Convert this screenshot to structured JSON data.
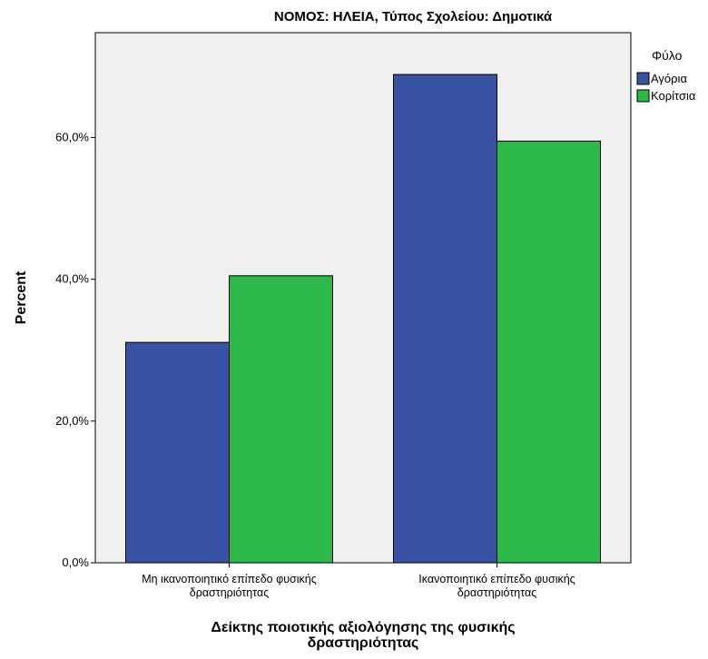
{
  "chart_data": {
    "type": "bar",
    "title": "ΝΟΜΟΣ: ΗΛΕΙΑ, Τύπος Σχολείου: Δημοτικά",
    "xlabel": [
      "Δείκτης ποιοτικής αξιολόγησης της φυσικής",
      "δραστηριότητας"
    ],
    "ylabel": "Percent",
    "categories": [
      [
        "Μη ικανοποιητικό επίπεδο φυσικής",
        "δραστηριότητας"
      ],
      [
        "Ικανοποιητικό επίπεδο φυσικής",
        "δραστηριότητας"
      ]
    ],
    "series": [
      {
        "name": "Αγόρια",
        "color": "#3953a4",
        "values": [
          31.1,
          68.9
        ]
      },
      {
        "name": "Κορίτσια",
        "color": "#2db84a",
        "values": [
          40.5,
          59.5
        ]
      }
    ],
    "ylim": [
      0,
      74.8
    ],
    "yticks": [
      0,
      20,
      40,
      60
    ],
    "ytick_labels": [
      "0,0%",
      "20,0%",
      "40,0%",
      "60,0%"
    ],
    "legend": {
      "title": "Φύλο",
      "placement": "top-right-outside"
    },
    "plot_background": "#f0f0f0",
    "grid": false
  }
}
